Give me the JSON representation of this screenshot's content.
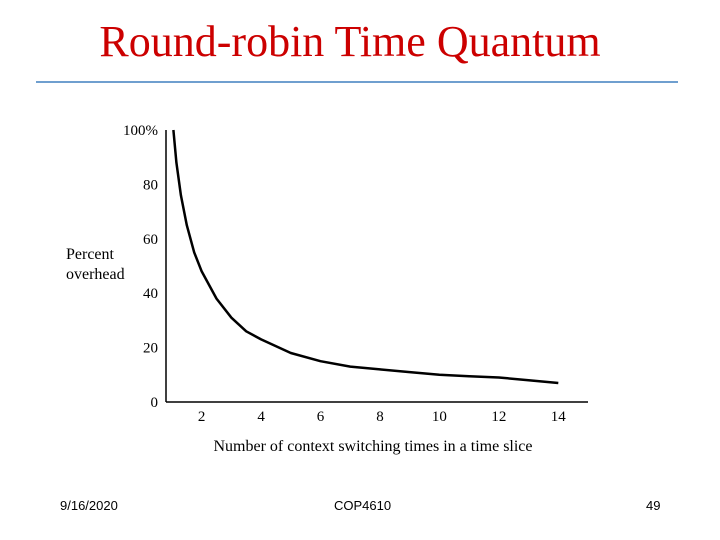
{
  "slide": {
    "title": "Round-robin Time Quantum"
  },
  "footer": {
    "date": "9/16/2020",
    "course": "COP4610",
    "page": "49"
  },
  "colors": {
    "title": "#cc0000",
    "rule": "#6f9fcf",
    "line": "#000000"
  },
  "chart_data": {
    "type": "line",
    "title": "",
    "xlabel": "Number of context switching times in a time slice",
    "ylabel_lines": [
      "Percent",
      "overhead"
    ],
    "xlim": [
      0.8,
      15
    ],
    "ylim": [
      0,
      100
    ],
    "x_ticks": [
      2,
      4,
      6,
      8,
      10,
      12,
      14
    ],
    "y_ticks": [
      {
        "value": 0,
        "label": "0"
      },
      {
        "value": 20,
        "label": "20"
      },
      {
        "value": 40,
        "label": "40"
      },
      {
        "value": 60,
        "label": "60"
      },
      {
        "value": 80,
        "label": "80"
      },
      {
        "value": 100,
        "label": "100%"
      }
    ],
    "grid": false,
    "series": [
      {
        "x": [
          1.05,
          1.15,
          1.3,
          1.5,
          1.75,
          2.0,
          2.5,
          3.0,
          3.5,
          4.0,
          5.0,
          6.0,
          7.0,
          8.0,
          9.0,
          10.0,
          11.0,
          12.0,
          13.0,
          14.0
        ],
        "y": [
          100,
          88,
          76,
          65,
          55,
          48,
          38,
          31,
          26,
          23,
          18,
          15,
          13,
          12,
          11,
          10,
          9.5,
          9,
          8,
          7
        ]
      }
    ]
  }
}
